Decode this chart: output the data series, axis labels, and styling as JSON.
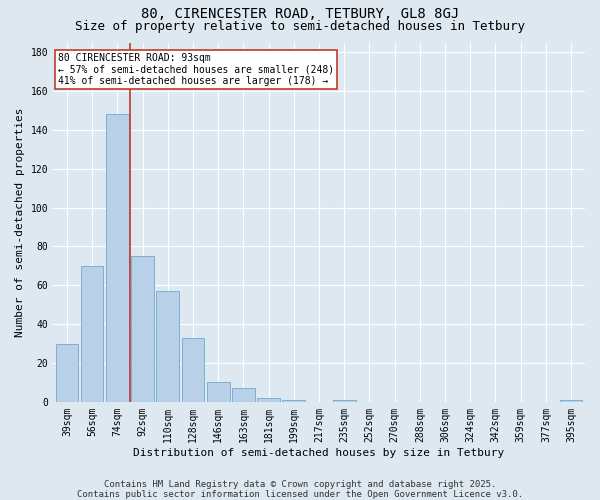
{
  "title_line1": "80, CIRENCESTER ROAD, TETBURY, GL8 8GJ",
  "title_line2": "Size of property relative to semi-detached houses in Tetbury",
  "xlabel": "Distribution of semi-detached houses by size in Tetbury",
  "ylabel": "Number of semi-detached properties",
  "categories": [
    "39sqm",
    "56sqm",
    "74sqm",
    "92sqm",
    "110sqm",
    "128sqm",
    "146sqm",
    "163sqm",
    "181sqm",
    "199sqm",
    "217sqm",
    "235sqm",
    "252sqm",
    "270sqm",
    "288sqm",
    "306sqm",
    "324sqm",
    "342sqm",
    "359sqm",
    "377sqm",
    "395sqm"
  ],
  "values": [
    30,
    70,
    148,
    75,
    57,
    33,
    10,
    7,
    2,
    1,
    0,
    1,
    0,
    0,
    0,
    0,
    0,
    0,
    0,
    0,
    1
  ],
  "bar_color": "#b8d0e8",
  "bar_edge_color": "#7aafd4",
  "vline_color": "#c0392b",
  "vline_x": 2.5,
  "annotation_text": "80 CIRENCESTER ROAD: 93sqm\n← 57% of semi-detached houses are smaller (248)\n41% of semi-detached houses are larger (178) →",
  "annotation_box_color": "#ffffff",
  "annotation_box_edge_color": "#c0392b",
  "ylim": [
    0,
    185
  ],
  "yticks": [
    0,
    20,
    40,
    60,
    80,
    100,
    120,
    140,
    160,
    180
  ],
  "background_color": "#dde8f0",
  "grid_color": "#ffffff",
  "footer_line1": "Contains HM Land Registry data © Crown copyright and database right 2025.",
  "footer_line2": "Contains public sector information licensed under the Open Government Licence v3.0.",
  "title_fontsize": 10,
  "subtitle_fontsize": 9,
  "annotation_fontsize": 7,
  "ylabel_fontsize": 8,
  "xlabel_fontsize": 8,
  "footer_fontsize": 6.5,
  "tick_fontsize": 7
}
